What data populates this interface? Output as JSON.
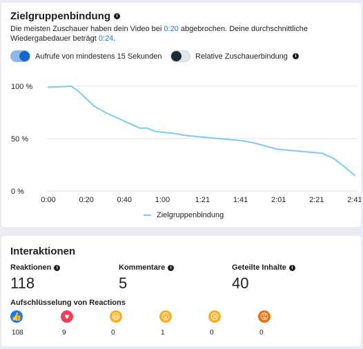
{
  "retention": {
    "title": "Zielgruppenbindung",
    "desc_part1": "Die meisten Zuschauer haben dein Video bei ",
    "drop_time": "0:20",
    "desc_part2": " abgebrochen. Deine durchschnittliche Wiedergabedauer beträgt ",
    "avg_watch": "0:24",
    "desc_part3": ".",
    "toggle1_label": "Aufrufe von mindestens 15 Sekunden",
    "toggle1_on": true,
    "toggle2_label": "Relative Zuschauerbindung",
    "toggle2_on": false,
    "legend_label": "Zielgruppenbindung"
  },
  "chart_data": {
    "type": "line",
    "y_ticks": [
      "100 %",
      "50 %",
      "0 %"
    ],
    "x_ticks": [
      "0:00",
      "0:20",
      "0:40",
      "1:00",
      "1:21",
      "1:41",
      "2:01",
      "2:21",
      "2:41"
    ],
    "ylim": [
      0,
      100
    ],
    "xlim_seconds": [
      0,
      161
    ],
    "grid": true,
    "line_color": "#79ccf1",
    "series": [
      {
        "name": "Zielgruppenbindung",
        "x": [
          0,
          6,
          12,
          16,
          20,
          24,
          30,
          36,
          42,
          48,
          52,
          56,
          60,
          66,
          72,
          78,
          84,
          90,
          96,
          102,
          108,
          114,
          120,
          126,
          132,
          138,
          144,
          150,
          155,
          161
        ],
        "y": [
          99,
          99.5,
          100,
          95,
          88,
          81,
          75,
          70,
          65,
          60,
          60,
          57,
          56,
          55,
          53,
          52,
          51,
          50,
          49,
          48,
          46,
          43,
          40,
          39,
          38,
          37,
          36,
          31,
          24,
          15
        ]
      }
    ]
  },
  "interactions": {
    "title": "Interaktionen",
    "reactions_label": "Reaktionen",
    "reactions_value": "118",
    "comments_label": "Kommentare",
    "comments_value": "5",
    "shares_label": "Geteilte Inhalte",
    "shares_value": "40",
    "breakdown_title": "Aufschlüsselung von Reactions",
    "reactions_breakdown": [
      {
        "icon": "like-reaction-icon",
        "glyph": "👍",
        "color": "#1877f2",
        "count": "108"
      },
      {
        "icon": "love-reaction-icon",
        "glyph": "♥",
        "color": "#f33e58",
        "count": "9"
      },
      {
        "icon": "haha-reaction-icon",
        "glyph": "😆",
        "color": "#f7b125",
        "count": "0"
      },
      {
        "icon": "wow-reaction-icon",
        "glyph": "😮",
        "color": "#f7b125",
        "count": "1"
      },
      {
        "icon": "sad-reaction-icon",
        "glyph": "😢",
        "color": "#f7b125",
        "count": "0"
      },
      {
        "icon": "angry-reaction-icon",
        "glyph": "😡",
        "color": "#e9710f",
        "count": "0"
      }
    ]
  }
}
